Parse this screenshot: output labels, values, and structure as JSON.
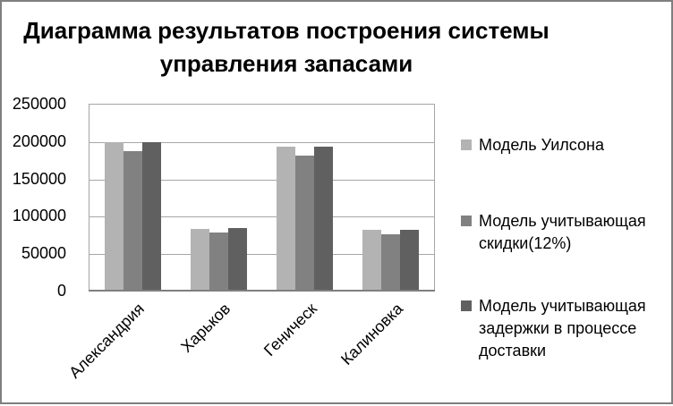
{
  "title": "Диаграмма результатов построения системы управления запасами",
  "colors": {
    "frame_border": "#7f7f7f",
    "plot_border": "#a6a6a6",
    "gridline": "#a6a6a6",
    "axis_line": "#7f7f7f",
    "text": "#000000",
    "background": "#ffffff"
  },
  "chart_data": {
    "type": "bar",
    "title": "Диаграмма результатов построения системы управления запасами",
    "categories": [
      "Александрия",
      "Харьков",
      "Геническ",
      "Калиновка"
    ],
    "series": [
      {
        "name": "Модель Уилсона",
        "color": "#b3b3b3",
        "values": [
          200000,
          84000,
          194000,
          82000
        ]
      },
      {
        "name": "Модель учитывающая скидки(12%)",
        "color": "#818181",
        "values": [
          188000,
          79000,
          182000,
          77000
        ]
      },
      {
        "name": "Модель учитывающая задержки в процессе доставки",
        "color": "#606060",
        "values": [
          200000,
          85000,
          194000,
          82000
        ]
      }
    ],
    "xlabel": "",
    "ylabel": "",
    "ylim": [
      0,
      250000
    ],
    "ytick_step": 50000,
    "ytick_labels_top_to_bottom": [
      "250000",
      "200000",
      "150000",
      "100000",
      "50000",
      "0"
    ],
    "grid": true,
    "legend_position": "right",
    "x_label_rotation_deg": 45
  }
}
